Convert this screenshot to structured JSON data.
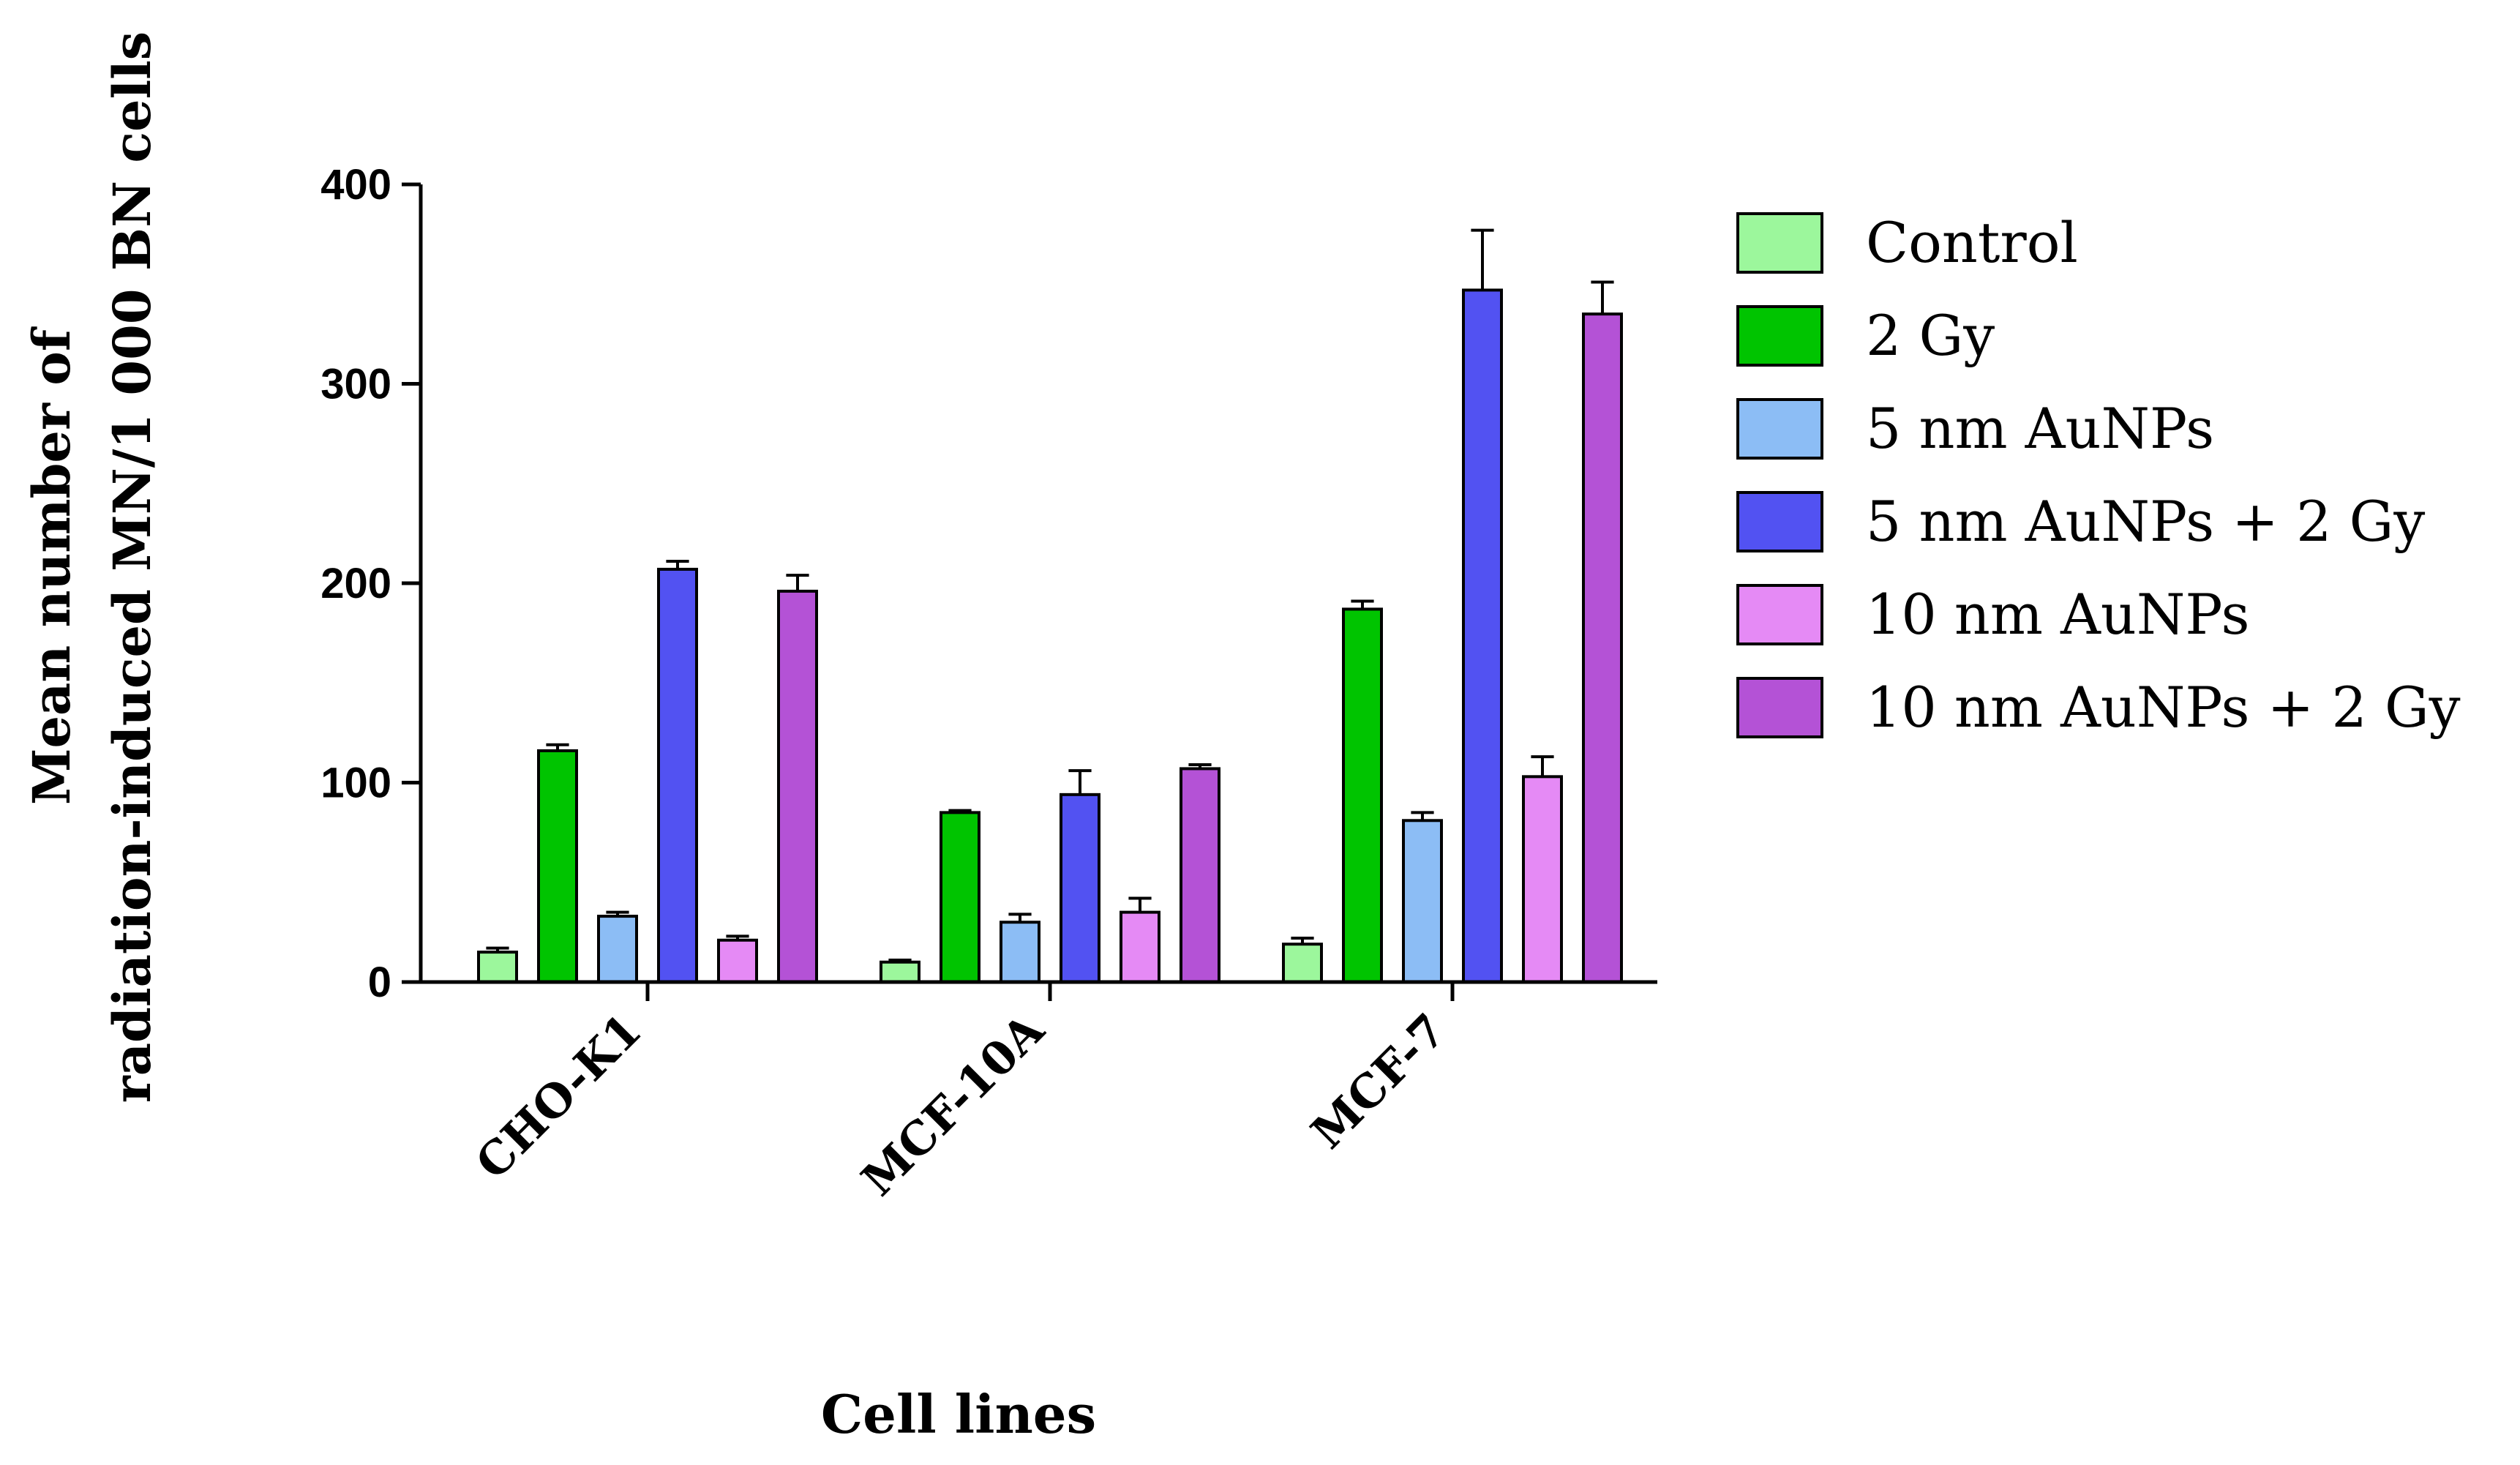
{
  "chart_data": {
    "type": "bar",
    "title": "",
    "xlabel": "Cell lines",
    "ylabel_lines": [
      "Mean number of",
      "radiation-induced MN/1 000 BN cells"
    ],
    "ylim": [
      0,
      400
    ],
    "yticks": [
      0,
      100,
      200,
      300,
      400
    ],
    "ytick_labels": [
      "0",
      "100",
      "200",
      "300",
      "400"
    ],
    "categories": [
      "CHO-K1",
      "MCF-10A",
      "MCF-7"
    ],
    "legend_position": "right",
    "series": [
      {
        "name": "Control",
        "color": "#9CF79C",
        "values": [
          15,
          10,
          19
        ],
        "errors": [
          2,
          1,
          3
        ]
      },
      {
        "name": "2 Gy",
        "color": "#00C400",
        "values": [
          116,
          85,
          187
        ],
        "errors": [
          3,
          1,
          4
        ]
      },
      {
        "name": "5 nm AuNPs",
        "color": "#8CBDF5",
        "values": [
          33,
          30,
          81
        ],
        "errors": [
          2,
          4,
          4
        ]
      },
      {
        "name": "5 nm AuNPs + 2 Gy",
        "color": "#5252F2",
        "values": [
          207,
          94,
          347
        ],
        "errors": [
          4,
          12,
          30
        ]
      },
      {
        "name": "10 nm AuNPs",
        "color": "#E58AF5",
        "values": [
          21,
          35,
          103
        ],
        "errors": [
          2,
          7,
          10
        ]
      },
      {
        "name": "10 nm AuNPs + 2 Gy",
        "color": "#B452D6",
        "values": [
          196,
          107,
          335
        ],
        "errors": [
          8,
          2,
          16
        ]
      }
    ]
  }
}
